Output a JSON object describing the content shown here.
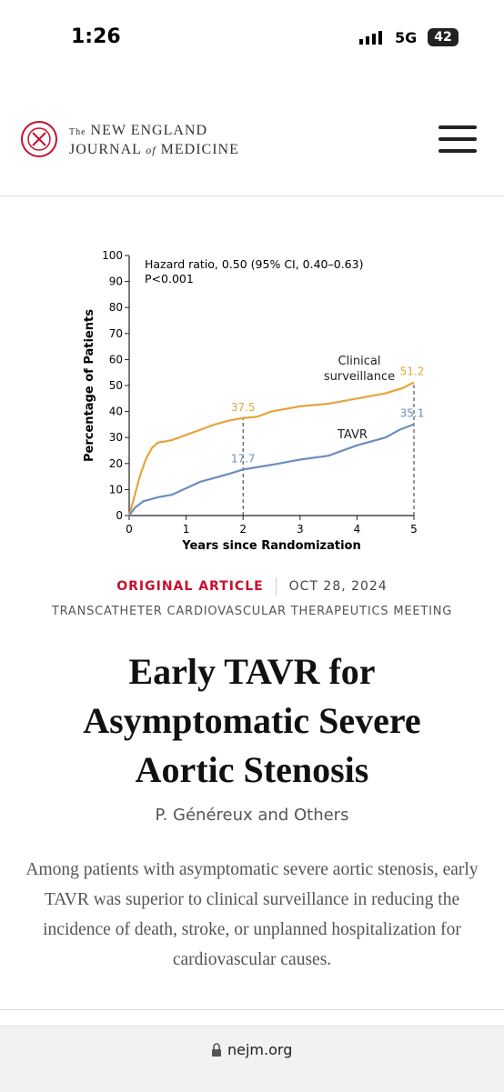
{
  "status_bar": {
    "time": "1:26",
    "network": "5G",
    "battery": "42"
  },
  "header": {
    "the": "The",
    "line1": "NEW ENGLAND",
    "journal": "JOURNAL",
    "of": "of",
    "medicine": "MEDICINE"
  },
  "chart_data": {
    "type": "line",
    "annotations": [
      "Hazard ratio, 0.50 (95% CI, 0.40–0.63)",
      "P<0.001"
    ],
    "x_label": "Years since Randomization",
    "y_label": "Percentage of Patients",
    "xlim": [
      0,
      5
    ],
    "ylim": [
      0,
      100
    ],
    "xticks": [
      0,
      1,
      2,
      3,
      4,
      5
    ],
    "yticks": [
      0,
      10,
      20,
      30,
      40,
      50,
      60,
      70,
      80,
      90,
      100
    ],
    "series": [
      {
        "name": "Clinical surveillance",
        "color": "#e8a33d",
        "x": [
          0,
          0.1,
          0.2,
          0.3,
          0.4,
          0.5,
          0.75,
          1,
          1.25,
          1.5,
          1.75,
          2,
          2.25,
          2.5,
          3,
          3.5,
          4,
          4.5,
          4.8,
          5
        ],
        "values": [
          0,
          8,
          16,
          22,
          26,
          28,
          29,
          31,
          33,
          35,
          36.5,
          37.5,
          38,
          40,
          42,
          43,
          45,
          47,
          49,
          51.2
        ]
      },
      {
        "name": "TAVR",
        "color": "#6c8ebf",
        "x": [
          0,
          0.1,
          0.25,
          0.5,
          0.75,
          1,
          1.25,
          1.5,
          1.75,
          2,
          2.5,
          3,
          3.5,
          4,
          4.5,
          4.75,
          5
        ],
        "values": [
          0,
          3,
          5.5,
          7,
          8,
          10.5,
          13,
          14.5,
          16,
          17.7,
          19.5,
          21.5,
          23,
          27,
          30,
          33,
          35.1
        ]
      }
    ],
    "point_labels": [
      {
        "series": 0,
        "x": 2,
        "value": 37.5
      },
      {
        "series": 1,
        "x": 2,
        "value": 17.7
      },
      {
        "series": 0,
        "x": 5,
        "value": 51.2
      },
      {
        "series": 1,
        "x": 5,
        "value": 35.1
      }
    ]
  },
  "article": {
    "kicker": "ORIGINAL ARTICLE",
    "date": "OCT 28, 2024",
    "meeting": "TRANSCATHETER CARDIOVASCULAR THERAPEUTICS MEETING",
    "title": "Early TAVR for Asymptomatic Severe Aortic Stenosis",
    "authors": "P. Généreux and Others",
    "summary": "Among patients with asymptomatic severe aortic stenosis, early TAVR was superior to clinical surveillance in reducing the incidence of death, stroke, or unplanned hospitalization for cardiovascular causes."
  },
  "footer": {
    "url": "nejm.org"
  }
}
